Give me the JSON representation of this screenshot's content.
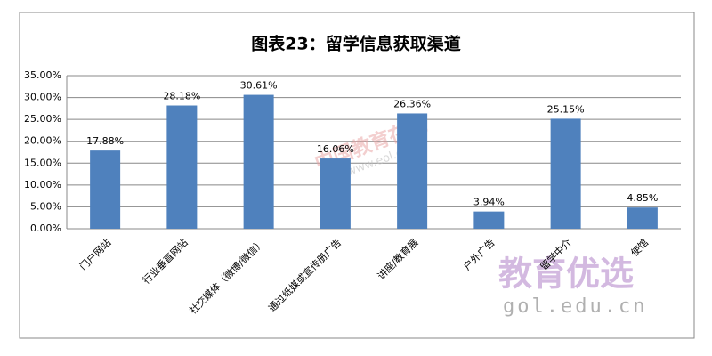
{
  "chart_data": {
    "type": "bar",
    "title": "图表23：留学信息获取渠道",
    "categories": [
      "门户网站",
      "行业垂直网站",
      "社交媒体（微博/微信）",
      "通过纸媒或宣传册广告",
      "讲座/教育展",
      "户外广告",
      "留学中介",
      "使馆"
    ],
    "values": [
      17.88,
      28.18,
      30.61,
      16.06,
      26.36,
      3.94,
      25.15,
      4.85
    ],
    "value_labels": [
      "17.88%",
      "28.18%",
      "30.61%",
      "16.06%",
      "26.36%",
      "3.94%",
      "25.15%",
      "4.85%"
    ],
    "color": "#4f81bd",
    "ylim": [
      0,
      35
    ],
    "yticks": [
      {
        "value": 0,
        "label": "0.00%"
      },
      {
        "value": 5,
        "label": "5.00%"
      },
      {
        "value": 10,
        "label": "10.00%"
      },
      {
        "value": 15,
        "label": "15.00%"
      },
      {
        "value": 20,
        "label": "20.00%"
      },
      {
        "value": 25,
        "label": "25.00%"
      },
      {
        "value": 30,
        "label": "30.00%"
      },
      {
        "value": 35,
        "label": "35.00%"
      }
    ],
    "grid": true,
    "watermarks": [
      "中国教育在线",
      "www.eol.cn",
      "教育优选",
      "gol.edu.cn"
    ]
  }
}
